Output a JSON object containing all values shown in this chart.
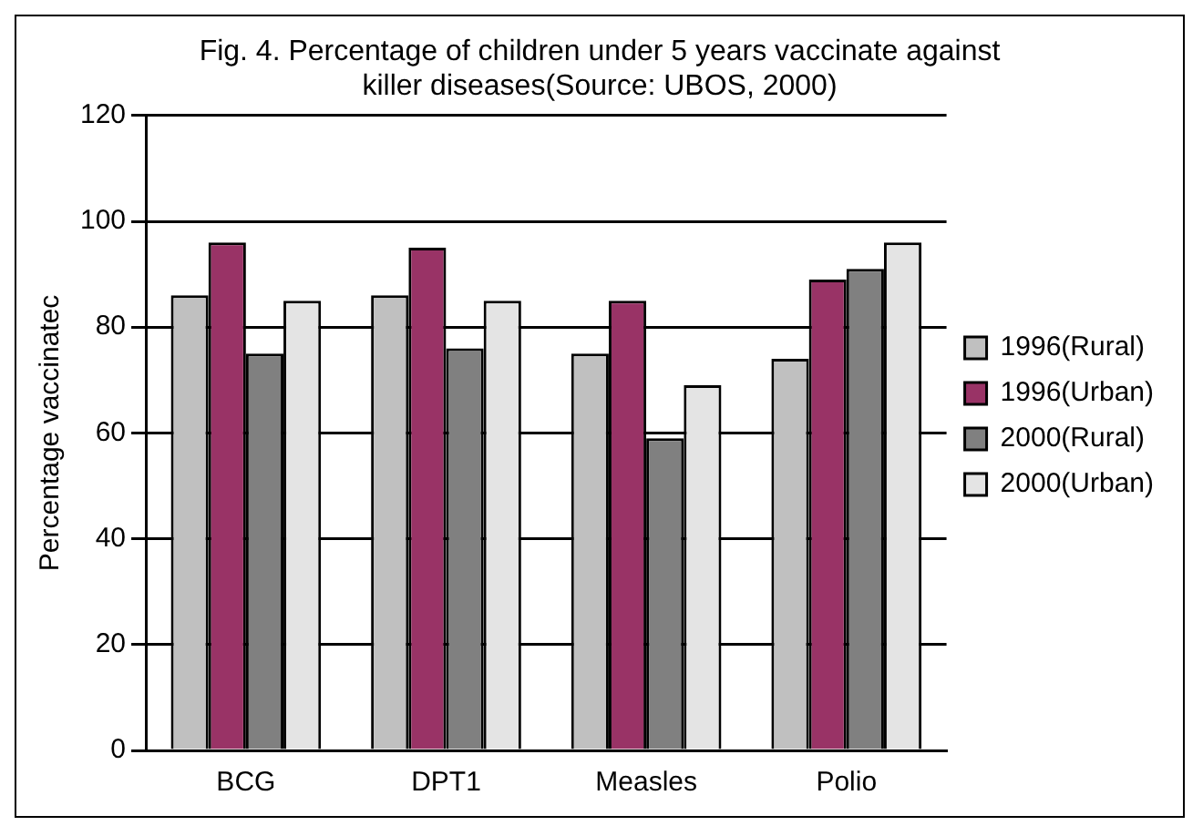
{
  "chart_data": {
    "type": "bar",
    "title": "Fig. 4. Percentage of children under 5 years vaccinate against killer diseases(Source: UBOS, 2000)",
    "ylabel": "Percentage vaccinatec",
    "categories": [
      "BCG",
      "DPT1",
      "Measles",
      "Polio"
    ],
    "series": [
      {
        "name": "1996(Rural)",
        "color": "#c0c0c0",
        "values": [
          86,
          86,
          75,
          74
        ]
      },
      {
        "name": "1996(Urban)",
        "color": "#993366",
        "values": [
          96,
          95,
          85,
          89
        ]
      },
      {
        "name": "2000(Rural)",
        "color": "#808080",
        "values": [
          75,
          76,
          59,
          91
        ]
      },
      {
        "name": "2000(Urban)",
        "color": "#e4e4e4",
        "values": [
          85,
          85,
          69,
          96
        ]
      }
    ],
    "ylim": [
      0,
      120
    ],
    "yticks": [
      0,
      20,
      40,
      60,
      80,
      100,
      120
    ],
    "grid": "y",
    "legend": "right"
  }
}
